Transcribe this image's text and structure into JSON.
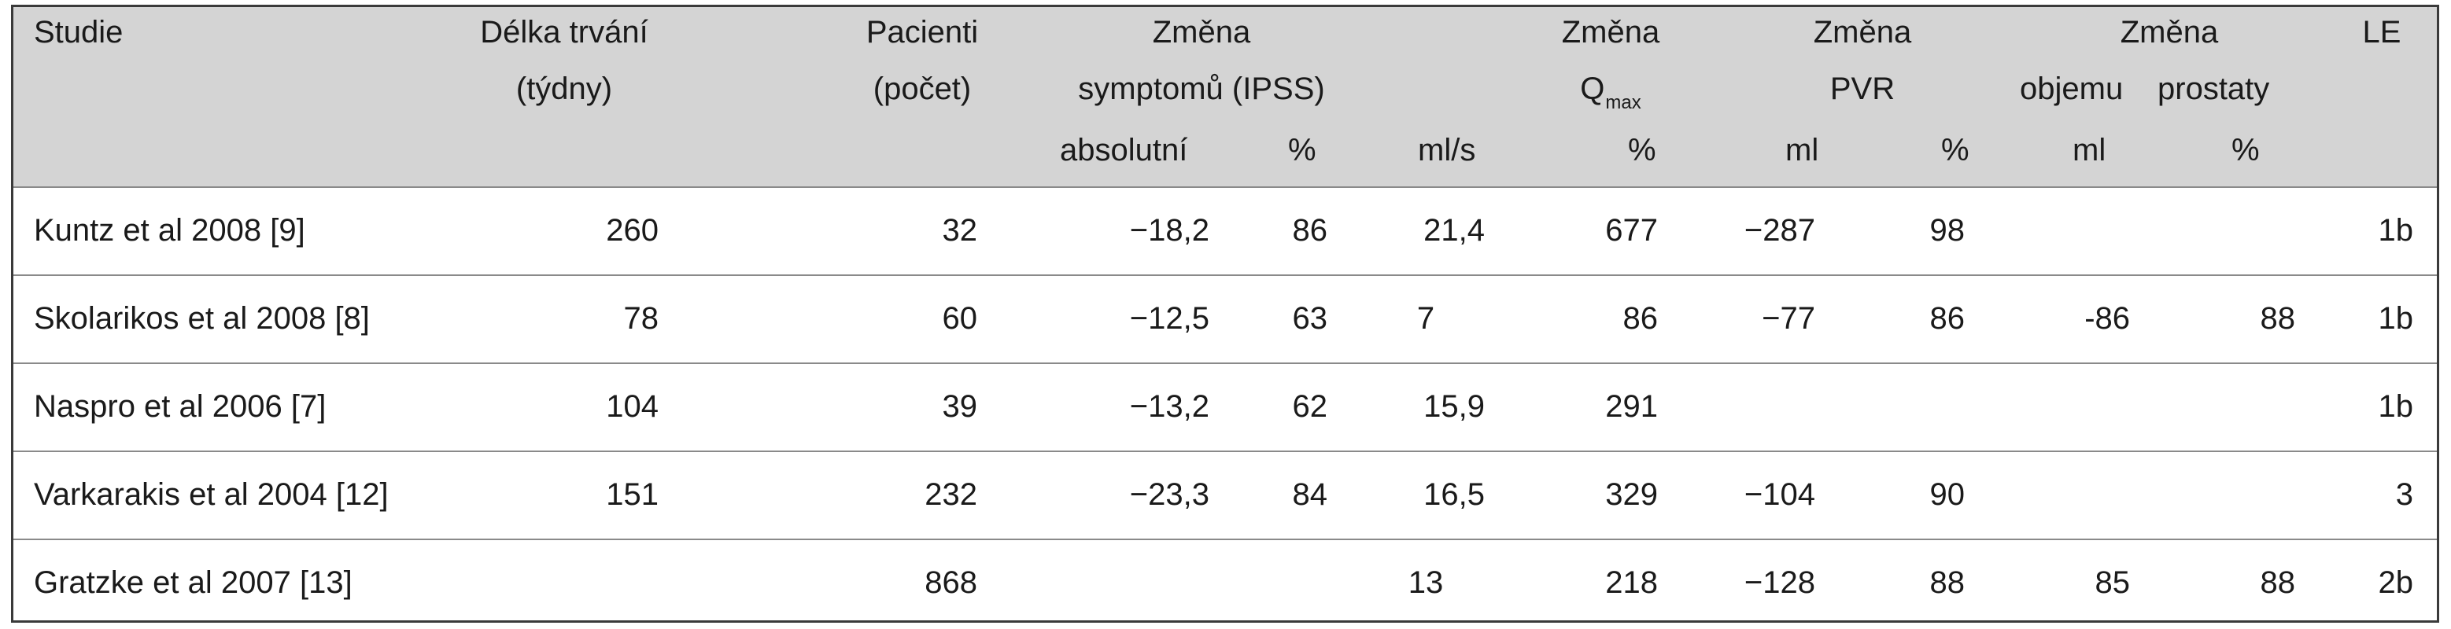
{
  "header": {
    "studie": "Studie",
    "delka_line1": "Délka trvání",
    "delka_line2": "(týdny)",
    "pacienti_line1": "Pacienti",
    "pacienti_line2": "(počet)",
    "ipss_line1": "Změna",
    "ipss_line2": "symptomů (IPSS)",
    "ipss_abs": "absolutní",
    "ipss_pct": "%",
    "qmax_line1": "Změna",
    "qmax_q": "Q",
    "qmax_sub": "max",
    "qmax_mls": "ml/s",
    "qmax_pct": "%",
    "pvr_line1": "Změna",
    "pvr_line2": "PVR",
    "pvr_ml": "ml",
    "pvr_pct": "%",
    "prost_line1": "Změna",
    "prost_line2a": "objemu",
    "prost_line2b": "prostaty",
    "prost_ml": "ml",
    "prost_pct": "%",
    "le": "LE"
  },
  "rows": [
    {
      "studie": "Kuntz et al 2008 [9]",
      "delka": "260",
      "pacienti": "32",
      "ipss_abs": "−18,2",
      "ipss_pct": "86",
      "qmax_mls": "21,4",
      "qmax_pct": "677",
      "pvr_ml": "−287",
      "pvr_pct": "98",
      "prost_ml": "",
      "prost_pct": "",
      "le": "1b"
    },
    {
      "studie": "Skolarikos et al 2008 [8]",
      "delka": "78",
      "pacienti": "60",
      "ipss_abs": "−12,5",
      "ipss_pct": "63",
      "qmax_mls": "7",
      "qmax_pct": "86",
      "pvr_ml": "−77",
      "pvr_pct": "86",
      "prost_ml": "-86",
      "prost_pct": "88",
      "le": "1b"
    },
    {
      "studie": "Naspro et al 2006 [7]",
      "delka": "104",
      "pacienti": "39",
      "ipss_abs": "−13,2",
      "ipss_pct": "62",
      "qmax_mls": "15,9",
      "qmax_pct": "291",
      "pvr_ml": "",
      "pvr_pct": "",
      "prost_ml": "",
      "prost_pct": "",
      "le": "1b"
    },
    {
      "studie": "Varkarakis et al 2004 [12]",
      "delka": "151",
      "pacienti": "232",
      "ipss_abs": "−23,3",
      "ipss_pct": "84",
      "qmax_mls": "16,5",
      "qmax_pct": "329",
      "pvr_ml": "−104",
      "pvr_pct": "90",
      "prost_ml": "",
      "prost_pct": "",
      "le": "3"
    },
    {
      "studie": "Gratzke et al 2007 [13]",
      "delka": "",
      "pacienti": "868",
      "ipss_abs": "",
      "ipss_pct": "",
      "qmax_mls": "13",
      "qmax_pct": "218",
      "pvr_ml": "−128",
      "pvr_pct": "88",
      "prost_ml": "85",
      "prost_pct": "88",
      "le": "2b"
    }
  ]
}
